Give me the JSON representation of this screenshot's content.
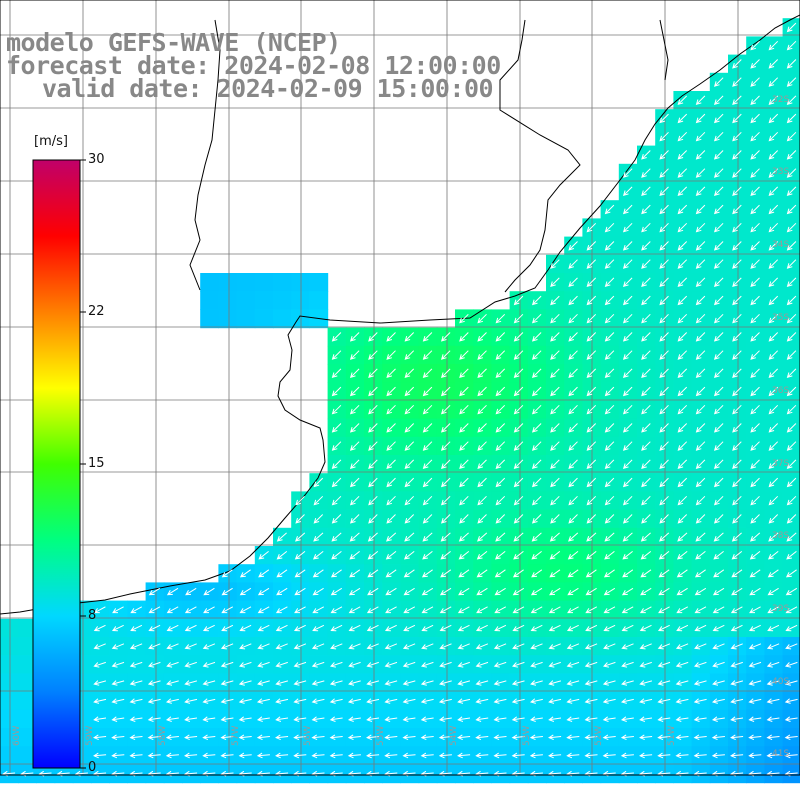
{
  "title": {
    "line1": "modelo GEFS-WAVE (NCEP)",
    "line2": "forecast date: 2024-02-08 12:00:00",
    "line3": "valid date: 2024-02-09 15:00:00"
  },
  "colorbar": {
    "unit": "[m/s]",
    "ticks": [
      {
        "label": "30",
        "value": 30
      },
      {
        "label": "22",
        "value": 22
      },
      {
        "label": "15",
        "value": 15
      },
      {
        "label": "8",
        "value": 8
      },
      {
        "label": "0",
        "value": 0
      }
    ],
    "min": 0,
    "max": 30,
    "colors": [
      "#0000ff",
      "#0080ff",
      "#00d8ff",
      "#00ff80",
      "#40ff00",
      "#ffff00",
      "#ff8000",
      "#ff0000",
      "#c0006a"
    ]
  },
  "lat_labels": [
    "32S",
    "33S",
    "34S",
    "35S",
    "36S",
    "37S",
    "38S",
    "39S",
    "40S",
    "41S"
  ],
  "lon_labels": [
    "60W",
    "59W",
    "58W",
    "57W",
    "56W",
    "55W",
    "54W",
    "53W",
    "52W",
    "51W"
  ],
  "wind": {
    "dominant_direction": "southwest",
    "offshore_speed_ms": 9,
    "coastal_south_speed_ms": 5
  }
}
